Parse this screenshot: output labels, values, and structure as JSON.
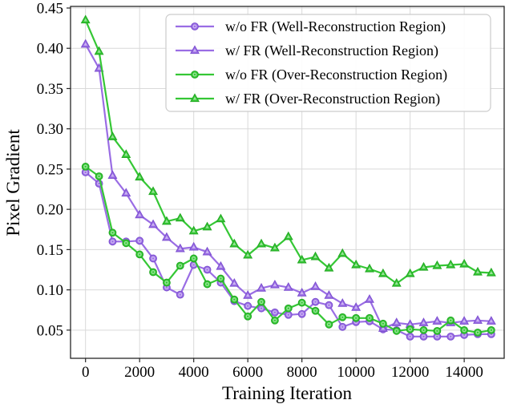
{
  "chart_data": {
    "type": "line",
    "title": "",
    "xlabel": "Training Iteration",
    "ylabel": "Pixel Gradient",
    "grid": true,
    "legend_position": "upper center",
    "xlim": [
      -554,
      15478
    ],
    "ylim": [
      0.015,
      0.452
    ],
    "x_ticks": [
      0,
      2000,
      4000,
      6000,
      8000,
      10000,
      12000,
      14000
    ],
    "x_tick_labels": [
      "0",
      "2000",
      "4000",
      "6000",
      "8000",
      "10000",
      "12000",
      "14000"
    ],
    "y_ticks": [
      0.05,
      0.1,
      0.15,
      0.2,
      0.25,
      0.3,
      0.35,
      0.4,
      0.45
    ],
    "y_tick_labels": [
      "0.05",
      "0.10",
      "0.15",
      "0.20",
      "0.25",
      "0.30",
      "0.35",
      "0.40",
      "0.45"
    ],
    "x": [
      0,
      500,
      1000,
      1500,
      2000,
      2500,
      3000,
      3500,
      4000,
      4500,
      5000,
      5500,
      6000,
      6500,
      7000,
      7500,
      8000,
      8500,
      9000,
      9500,
      10000,
      10500,
      11000,
      11500,
      12000,
      12500,
      13000,
      13500,
      14000,
      14500,
      15000
    ],
    "series": [
      {
        "name": "w/o FR (Well-Reconstruction Region)",
        "color": "#9a6de4",
        "edge_color": "#7c4fd0",
        "marker": "circle",
        "values": [
          0.246,
          0.232,
          0.16,
          0.16,
          0.161,
          0.139,
          0.103,
          0.094,
          0.131,
          0.125,
          0.109,
          0.086,
          0.08,
          0.077,
          0.072,
          0.069,
          0.07,
          0.085,
          0.081,
          0.054,
          0.06,
          0.061,
          0.051,
          0.05,
          0.042,
          0.042,
          0.042,
          0.042,
          0.044,
          0.045,
          0.045
        ]
      },
      {
        "name": "w/ FR (Well-Reconstruction Region)",
        "color": "#9a6de4",
        "edge_color": "#7c4fd0",
        "marker": "triangle",
        "values": [
          0.405,
          0.375,
          0.242,
          0.22,
          0.193,
          0.181,
          0.165,
          0.151,
          0.153,
          0.147,
          0.129,
          0.108,
          0.093,
          0.102,
          0.106,
          0.103,
          0.096,
          0.104,
          0.093,
          0.083,
          0.078,
          0.088,
          0.052,
          0.059,
          0.057,
          0.059,
          0.061,
          0.059,
          0.061,
          0.062,
          0.061
        ]
      },
      {
        "name": "w/o FR (Over-Reconstruction Region)",
        "color": "#35c735",
        "edge_color": "#22a822",
        "marker": "circle",
        "values": [
          0.253,
          0.241,
          0.171,
          0.158,
          0.144,
          0.122,
          0.109,
          0.13,
          0.139,
          0.107,
          0.114,
          0.088,
          0.067,
          0.085,
          0.062,
          0.077,
          0.084,
          0.074,
          0.057,
          0.066,
          0.065,
          0.065,
          0.058,
          0.049,
          0.051,
          0.05,
          0.049,
          0.062,
          0.05,
          0.047,
          0.05
        ]
      },
      {
        "name": "w/ FR (Over-Reconstruction Region)",
        "color": "#35c735",
        "edge_color": "#22a822",
        "marker": "triangle",
        "values": [
          0.435,
          0.396,
          0.29,
          0.268,
          0.24,
          0.222,
          0.185,
          0.189,
          0.173,
          0.178,
          0.188,
          0.157,
          0.143,
          0.157,
          0.152,
          0.166,
          0.137,
          0.141,
          0.127,
          0.145,
          0.131,
          0.126,
          0.12,
          0.108,
          0.12,
          0.128,
          0.13,
          0.131,
          0.132,
          0.122,
          0.121
        ]
      }
    ],
    "style": {
      "grid_color": "#d9d9d9",
      "spine_color": "#262626",
      "background": "#ffffff",
      "legend_border": "#cccccc"
    }
  }
}
